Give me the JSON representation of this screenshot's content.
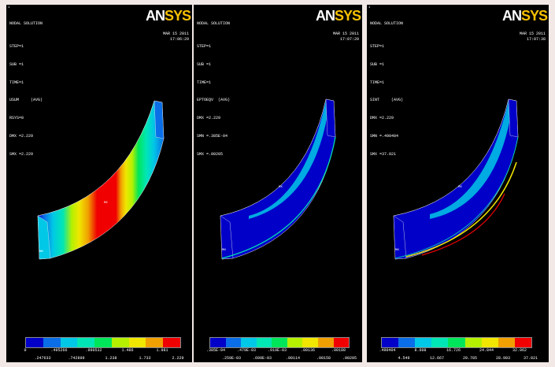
{
  "panels": [
    {
      "corner_number": "1",
      "header": "NODAL SOLUTION",
      "lines": [
        "STEP=1",
        "SUB =1",
        "TIME=1",
        "USUM     (AVG)",
        "RSYS=0",
        "DMX =2.229",
        "SMX =2.229"
      ],
      "date": "MAR 15 2011",
      "time": "17:06:29",
      "legend_top": [
        "0",
        ".495266",
        ".990532",
        "1.486",
        "1.981"
      ],
      "legend_bottom": [
        ".247633",
        ".742899",
        "1.238",
        "1.733",
        "2.229"
      ],
      "mx_label": "MX",
      "mn_label": "MN"
    },
    {
      "corner_number": "",
      "header": "NODAL SOLUTION",
      "lines": [
        "STEP=1",
        "SUB =1",
        "TIME=1",
        "EPTOEQV  (AVG)",
        "DMX =2.229",
        "SMN =.385E-04",
        "SMX =.00205"
      ],
      "date": "MAR 15 2011",
      "time": "17:07:20",
      "legend_top": [
        ".385E-04",
        ".479E-03",
        ".919E-03",
        ".00136",
        ".00180"
      ],
      "legend_bottom": [
        ".259E-03",
        ".699E-03",
        ".00114",
        ".00158",
        ".00205"
      ],
      "mx_label": "MX",
      "mn_label": "MN"
    },
    {
      "corner_number": "1",
      "header": "NODAL SOLUTION",
      "lines": [
        "STEP=1",
        "SUB =1",
        "TIME=1",
        "SINT     (AVG)",
        "DMX =2.229",
        "SMN =.490404",
        "SMX =37.021"
      ],
      "date": "MAR 15 2011",
      "time": "17:07:38",
      "legend_top": [
        ".490404",
        "8.608",
        "16.726",
        "24.844",
        "32.962"
      ],
      "legend_bottom": [
        "4.549",
        "12.667",
        "20.785",
        "28.903",
        "37.021"
      ],
      "mx_label": "MX",
      "mn_label": "MN"
    }
  ],
  "logo": {
    "an": "AN",
    "sys": "SYS"
  },
  "colors": {
    "scale": [
      "#0000c8",
      "#0a6ee8",
      "#00c8e6",
      "#00e6b4",
      "#00e65a",
      "#b4f000",
      "#f0e600",
      "#f0a000",
      "#f00000"
    ]
  },
  "icons": {
    "logo": "ansys-logo"
  }
}
